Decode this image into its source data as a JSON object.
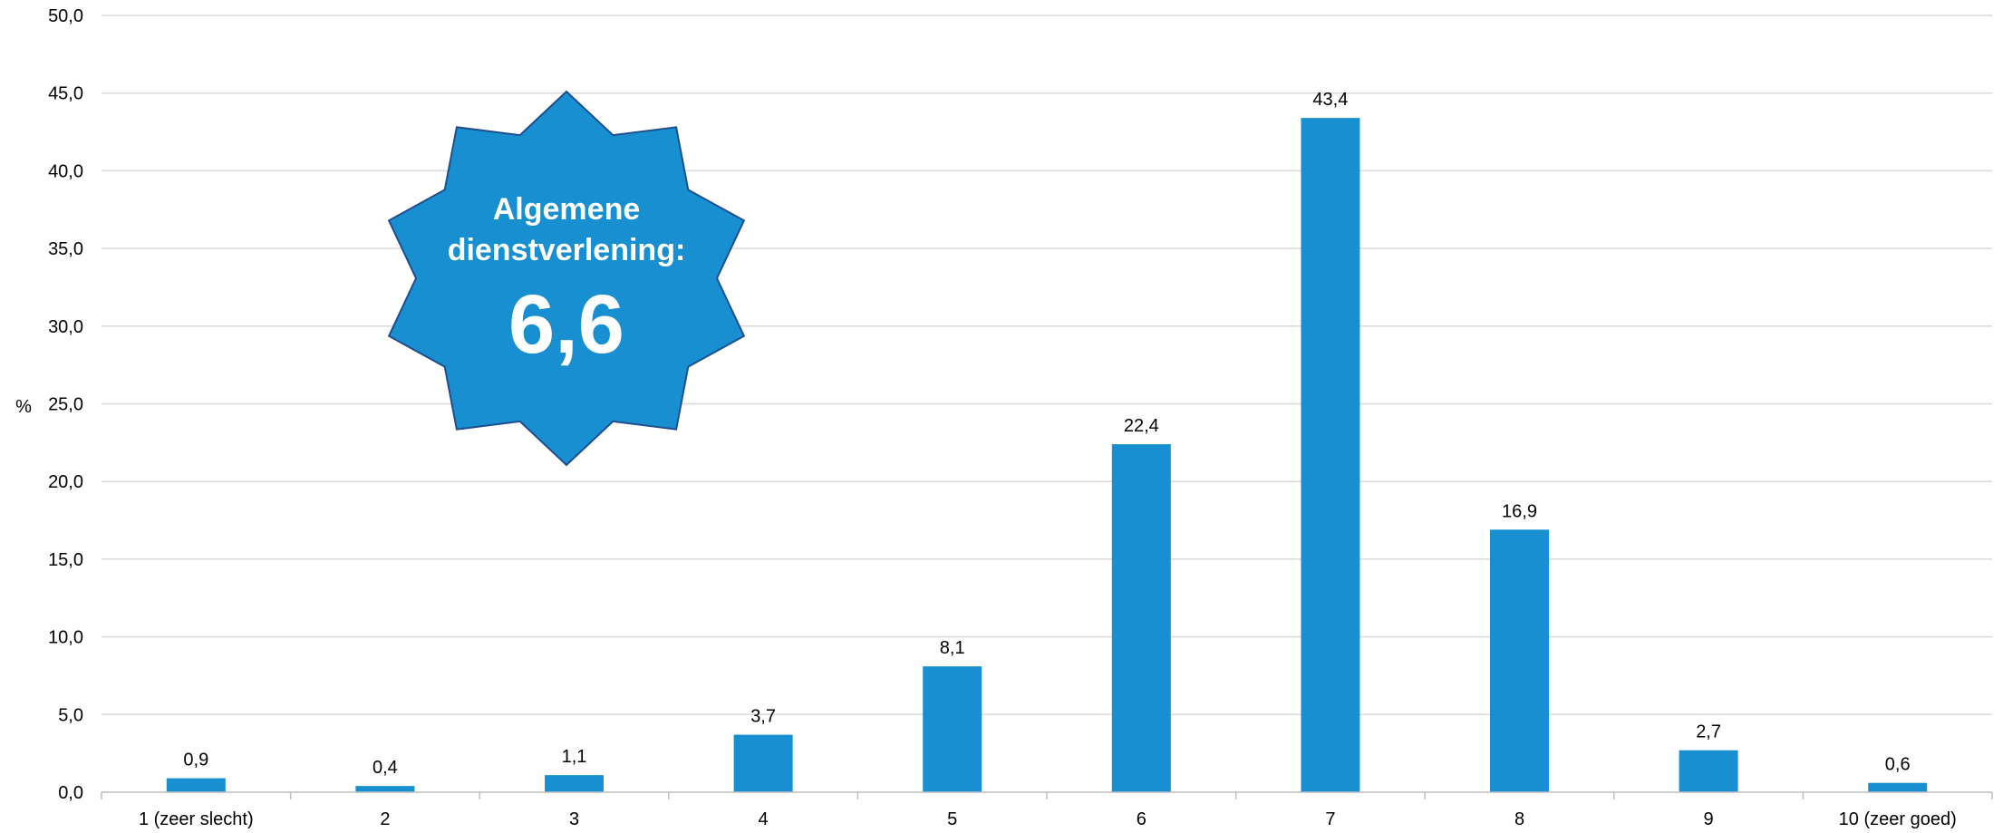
{
  "chart_data": {
    "type": "bar",
    "categories": [
      "1 (zeer slecht)",
      "2",
      "3",
      "4",
      "5",
      "6",
      "7",
      "8",
      "9",
      "10 (zeer goed)"
    ],
    "values": [
      0.9,
      0.4,
      1.1,
      3.7,
      8.1,
      22.4,
      43.4,
      16.9,
      2.7,
      0.6
    ],
    "data_labels": [
      "0,9",
      "0,4",
      "1,1",
      "3,7",
      "8,1",
      "22,4",
      "43,4",
      "16,9",
      "2,7",
      "0,6"
    ],
    "ylabel": "%",
    "ylim": [
      0,
      50
    ],
    "yticks": [
      0,
      5,
      10,
      15,
      20,
      25,
      30,
      35,
      40,
      45,
      50
    ],
    "ytick_labels": [
      "0,0",
      "5,0",
      "10,0",
      "15,0",
      "20,0",
      "25,0",
      "30,0",
      "35,0",
      "40,0",
      "45,0",
      "50,0"
    ],
    "grid": true,
    "legend": "none",
    "bar_color": "#178FD0",
    "grid_color": "#D9D9D9"
  },
  "badge": {
    "title_line1": "Algemene",
    "title_line2": "dienstverlening:",
    "value": "6,6",
    "fill_color": "#178FD0",
    "stroke_color": "#1F4E8C"
  }
}
